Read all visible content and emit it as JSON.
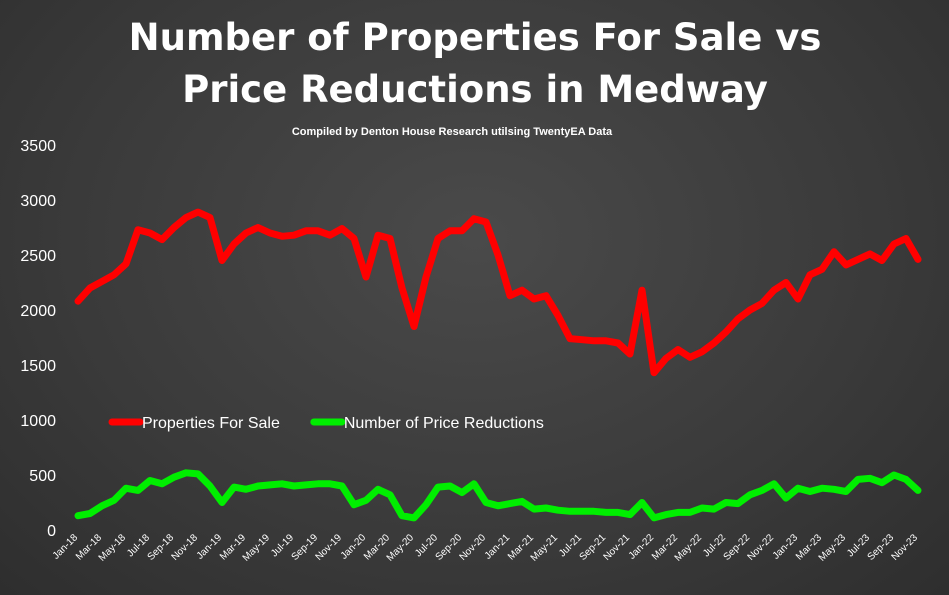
{
  "chart_data": {
    "type": "line",
    "title": "Number of Properties For Sale vs Price Reductions in Medway",
    "subtitle": "Compiled by Denton House Research utilsing TwentyEA Data",
    "categories": [
      "Jan-18",
      null,
      "Mar-18",
      null,
      "May-18",
      null,
      "Jul-18",
      null,
      "Sep-18",
      null,
      "Nov-18",
      null,
      "Jan-19",
      null,
      "Mar-19",
      null,
      "May-19",
      null,
      "Jul-19",
      null,
      "Sep-19",
      null,
      "Nov-19",
      null,
      "Jan-20",
      null,
      "Mar-20",
      null,
      "May-20",
      null,
      "Jul-20",
      null,
      "Sep-20",
      null,
      "Nov-20",
      null,
      "Jan-21",
      null,
      "Mar-21",
      null,
      "May-21",
      null,
      "Jul-21",
      null,
      "Sep-21",
      null,
      "Nov-21",
      null,
      "Jan-22",
      null,
      "Mar-22",
      null,
      "May-22",
      null,
      "Jul-22",
      null,
      "Sep-22",
      null,
      "Nov-22",
      null,
      "Jan-23",
      null,
      "Mar-23",
      null,
      "May-23",
      null,
      "Jul-23",
      null,
      "Sep-23",
      null,
      "Nov-23"
    ],
    "series": [
      {
        "name": "Properties For Sale",
        "color": "#ff0000",
        "values": [
          2080,
          2200,
          2260,
          2320,
          2420,
          2730,
          2700,
          2640,
          2750,
          2840,
          2890,
          2840,
          2450,
          2600,
          2700,
          2750,
          2700,
          2670,
          2680,
          2720,
          2720,
          2680,
          2740,
          2650,
          2300,
          2680,
          2650,
          2200,
          1850,
          2300,
          2650,
          2720,
          2720,
          2830,
          2800,
          2500,
          2130,
          2180,
          2100,
          2130,
          1950,
          1740,
          1730,
          1720,
          1720,
          1700,
          1600,
          2180,
          1430,
          1560,
          1640,
          1570,
          1620,
          1700,
          1800,
          1920,
          2000,
          2060,
          2180,
          2250,
          2100,
          2320,
          2370,
          2530,
          2410,
          2460,
          2510,
          2450,
          2600,
          2650,
          2460
        ]
      },
      {
        "name": "Number of Price Reductions",
        "color": "#00ee00",
        "values": [
          130,
          150,
          220,
          270,
          380,
          360,
          450,
          420,
          480,
          520,
          510,
          400,
          250,
          390,
          370,
          400,
          410,
          420,
          400,
          410,
          420,
          420,
          400,
          230,
          270,
          370,
          320,
          130,
          110,
          230,
          390,
          400,
          340,
          420,
          250,
          220,
          240,
          260,
          190,
          200,
          180,
          170,
          170,
          170,
          160,
          160,
          140,
          250,
          110,
          140,
          160,
          160,
          200,
          190,
          250,
          240,
          320,
          360,
          420,
          290,
          380,
          350,
          380,
          370,
          350,
          460,
          470,
          430,
          500,
          460,
          360
        ]
      }
    ],
    "ylim": [
      0,
      3500
    ],
    "yticks": [
      0,
      500,
      1000,
      1500,
      2000,
      2500,
      3000,
      3500
    ],
    "grid": false,
    "legend": "left"
  }
}
